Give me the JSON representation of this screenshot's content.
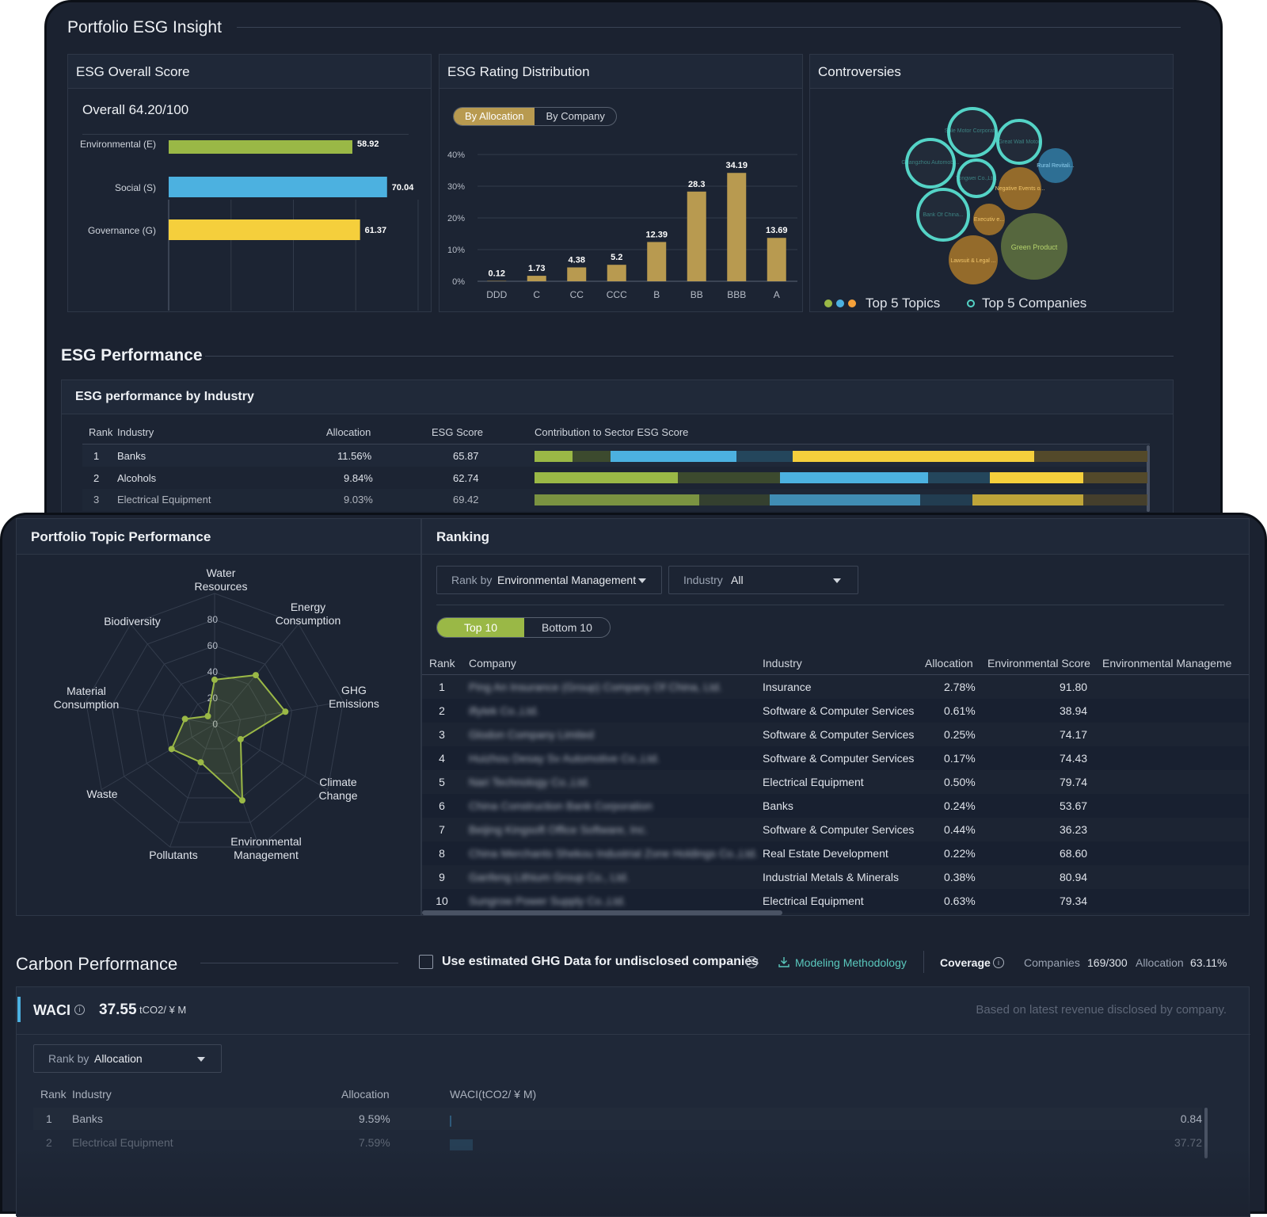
{
  "insight": {
    "title": "Portfolio ESG Insight",
    "overall": {
      "title": "ESG Overall Score",
      "summary": "Overall 64.20/100",
      "bars": [
        {
          "label": "Environmental (E)",
          "value": 58.92,
          "color": "#9ab846"
        },
        {
          "label": "Social (S)",
          "value": 70.04,
          "color": "#4cb1e0"
        },
        {
          "label": "Governance (G)",
          "value": 61.37,
          "color": "#f5cf3c"
        }
      ],
      "ticks": [
        "0",
        "20",
        "40",
        "60",
        "80"
      ],
      "xlim": [
        0,
        80
      ]
    },
    "rating": {
      "title": "ESG Rating Distribution",
      "toggle": [
        "By Allocation",
        "By Company"
      ],
      "yticks": [
        "40%",
        "30%",
        "20%",
        "10%",
        "0%"
      ],
      "ylim": [
        0,
        40
      ]
    },
    "controversies": {
      "title": "Controversies",
      "bubbles": [
        {
          "label": "Sale Motor Corporati...",
          "kind": "company"
        },
        {
          "label": "Great Wall Motor",
          "kind": "company"
        },
        {
          "label": "Guangzhou Automobi...",
          "kind": "company"
        },
        {
          "label": "Tongwei Co.,Ltd.",
          "kind": "company"
        },
        {
          "label": "Bank Of China...",
          "kind": "company"
        },
        {
          "label": "Rural Revitali...",
          "kind": "topic-blue"
        },
        {
          "label": "Negative Events o...",
          "kind": "topic-orange"
        },
        {
          "label": "Executiv e...",
          "kind": "topic-orange"
        },
        {
          "label": "Lawsuit & Legal ...",
          "kind": "topic-orange"
        },
        {
          "label": "Green Product",
          "kind": "topic-green"
        }
      ],
      "legend_topics": "Top 5 Topics",
      "legend_companies": "Top 5 Companies"
    }
  },
  "chart_data": [
    {
      "type": "bar",
      "title": "ESG Overall Score",
      "categories": [
        "Environmental (E)",
        "Social (S)",
        "Governance (G)"
      ],
      "values": [
        58.92,
        70.04,
        61.37
      ],
      "xlim": [
        0,
        80
      ]
    },
    {
      "type": "bar",
      "title": "ESG Rating Distribution",
      "categories": [
        "DDD",
        "C",
        "CC",
        "CCC",
        "B",
        "BB",
        "BBB",
        "A"
      ],
      "values": [
        0.12,
        1.73,
        4.38,
        5.2,
        12.39,
        28.3,
        34.19,
        13.69
      ],
      "ylim": [
        0,
        40
      ],
      "color": "#b89a50"
    },
    {
      "type": "radar",
      "title": "Portfolio Topic Performance",
      "categories": [
        "Water Resources",
        "Energy Consumption",
        "GHG Emissions",
        "Climate Change",
        "Environmental Management",
        "Pollutants",
        "Waste",
        "Material Consumption",
        "Biodiversity"
      ],
      "values": [
        34,
        49,
        55,
        23,
        62,
        31,
        38,
        23,
        8
      ],
      "ticks": [
        "80",
        "60",
        "40",
        "20",
        "0"
      ],
      "rlim": [
        0,
        100
      ]
    },
    {
      "type": "bar",
      "title": "WACI(tCO2/ ¥ M)",
      "categories": [
        "Banks",
        "Electrical Equipment"
      ],
      "values": [
        0.84,
        37.72
      ]
    }
  ],
  "performance": {
    "title": "ESG Performance",
    "panel_title": "ESG performance by Industry",
    "columns": [
      "Rank",
      "Industry",
      "Allocation",
      "ESG Score",
      "Contribution to Sector ESG Score"
    ],
    "rows": [
      {
        "rank": "1",
        "industry": "Banks",
        "allocation": "11.56%",
        "score": "65.87"
      },
      {
        "rank": "2",
        "industry": "Alcohols",
        "allocation": "9.84%",
        "score": "62.74"
      },
      {
        "rank": "3",
        "industry": "Electrical Equipment",
        "allocation": "9.03%",
        "score": "69.42"
      }
    ]
  },
  "topic": {
    "title": "Portfolio Topic Performance"
  },
  "ranking": {
    "title": "Ranking",
    "rank_by_label": "Rank by",
    "rank_by_value": "Environmental Management",
    "industry_label": "Industry",
    "industry_value": "All",
    "toggle": [
      "Top 10",
      "Bottom 10"
    ],
    "columns": [
      "Rank",
      "Company",
      "Industry",
      "Allocation",
      "Environmental Score",
      "Environmental Manageme"
    ],
    "rows": [
      {
        "rank": "1",
        "company": "Ping An Insurance (Group) Company Of China, Ltd.",
        "industry": "Insurance",
        "allocation": "2.78%",
        "score": "91.80"
      },
      {
        "rank": "2",
        "company": "iflytek Co.,Ltd.",
        "industry": "Software & Computer Services",
        "allocation": "0.61%",
        "score": "38.94"
      },
      {
        "rank": "3",
        "company": "Glodon Company Limited",
        "industry": "Software & Computer Services",
        "allocation": "0.25%",
        "score": "74.17"
      },
      {
        "rank": "4",
        "company": "Huizhou Desay Sv Automotive Co.,Ltd.",
        "industry": "Software & Computer Services",
        "allocation": "0.17%",
        "score": "74.43"
      },
      {
        "rank": "5",
        "company": "Nari Technology Co.,Ltd.",
        "industry": "Electrical Equipment",
        "allocation": "0.50%",
        "score": "79.74"
      },
      {
        "rank": "6",
        "company": "China Construction Bank Corporation",
        "industry": "Banks",
        "allocation": "0.24%",
        "score": "53.67"
      },
      {
        "rank": "7",
        "company": "Beijing Kingsoft Office Software, Inc.",
        "industry": "Software & Computer Services",
        "allocation": "0.44%",
        "score": "36.23"
      },
      {
        "rank": "8",
        "company": "China Merchants Shekou Industrial Zone Holdings Co.,Ltd.",
        "industry": "Real Estate Development",
        "allocation": "0.22%",
        "score": "68.60"
      },
      {
        "rank": "9",
        "company": "Ganfeng Lithium Group Co., Ltd.",
        "industry": "Industrial Metals & Minerals",
        "allocation": "0.38%",
        "score": "80.94"
      },
      {
        "rank": "10",
        "company": "Sungrow Power Supply Co.,Ltd.",
        "industry": "Electrical Equipment",
        "allocation": "0.63%",
        "score": "79.34"
      }
    ]
  },
  "carbon": {
    "title": "Carbon Performance",
    "checkbox_label": "Use estimated GHG Data for undisclosed companies",
    "methodology": "Modeling Methodology",
    "coverage_label": "Coverage",
    "companies_label": "Companies",
    "companies_value": "169/300",
    "allocation_label": "Allocation",
    "allocation_value": "63.11%",
    "waci_label": "WACI",
    "waci_value": "37.55",
    "waci_unit": "tCO2/ ¥ M",
    "waci_note": "Based on latest revenue disclosed by company.",
    "rank_by_label": "Rank by",
    "rank_by_value": "Allocation",
    "columns": [
      "Rank",
      "Industry",
      "Allocation",
      "WACI(tCO2/ ¥ M)"
    ],
    "rows": [
      {
        "rank": "1",
        "industry": "Banks",
        "allocation": "9.59%",
        "waci": "0.84"
      },
      {
        "rank": "2",
        "industry": "Electrical Equipment",
        "allocation": "7.59%",
        "waci": "37.72"
      }
    ]
  },
  "colors": {
    "env": "#9ab846",
    "social": "#4cb1e0",
    "gov": "#f5cf3c",
    "gold": "#b89a50",
    "teal": "#54d3c6",
    "link": "#5ac8bd"
  }
}
